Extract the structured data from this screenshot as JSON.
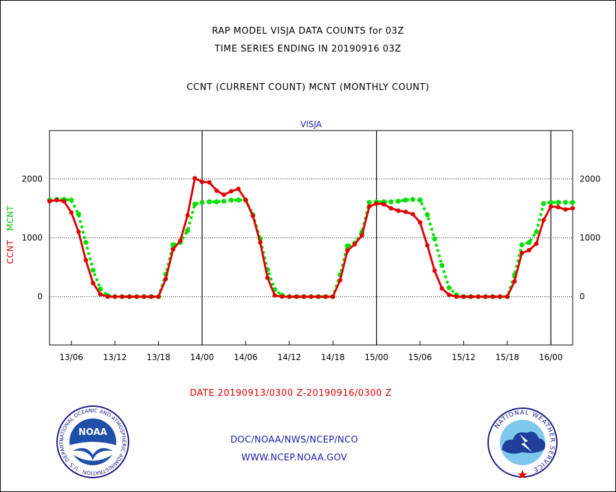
{
  "header": {
    "title_line1": "RAP MODEL VISJA DATA COUNTS for 03Z",
    "title_line2": "TIME SERIES ENDING IN 20190916 03Z",
    "subtitle": "CCNT (CURRENT COUNT) MCNT (MONTHLY COUNT)"
  },
  "footer": {
    "date_range": "DATE 20190913/0300 Z-20190916/0300 Z",
    "credit_line1": "DOC/NOAA/NWS/NCEP/NCO",
    "credit_line2": "WWW.NCEP.NOAA.GOV"
  },
  "logos": {
    "noaa_text": "NOAA",
    "noaa_ring_text": "NATIONAL OCEANIC AND ATMOSPHERIC ADMINISTRATION · U.S. DEPARTMENT OF COMMERCE",
    "nws_ring_text": "NATIONAL WEATHER SERVICE"
  },
  "chart_data": {
    "type": "line",
    "title": "VISJA",
    "ylabel_series": [
      "CCNT",
      "MCNT"
    ],
    "x_unit": "hours since 13/03Z",
    "xlim": [
      0,
      72
    ],
    "ylim": [
      -820,
      2820
    ],
    "yticks": [
      0,
      1000,
      2000
    ],
    "xtick_labels": [
      {
        "x": 3,
        "label": "13/06"
      },
      {
        "x": 9,
        "label": "13/12"
      },
      {
        "x": 15,
        "label": "13/18"
      },
      {
        "x": 21,
        "label": "14/00"
      },
      {
        "x": 27,
        "label": "14/06"
      },
      {
        "x": 33,
        "label": "14/12"
      },
      {
        "x": 39,
        "label": "14/18"
      },
      {
        "x": 45,
        "label": "15/00"
      },
      {
        "x": 51,
        "label": "15/06"
      },
      {
        "x": 57,
        "label": "15/12"
      },
      {
        "x": 63,
        "label": "15/18"
      },
      {
        "x": 69,
        "label": "16/00"
      }
    ],
    "day_boundaries": [
      21,
      45,
      69
    ],
    "grid": "horizontal dotted at y ticks",
    "colors": {
      "CCNT": "#e00000",
      "MCNT": "#00e000"
    },
    "series": [
      {
        "name": "CCNT",
        "x": [
          0,
          1,
          2,
          3,
          4,
          5,
          6,
          7,
          8,
          9,
          10,
          11,
          12,
          13,
          14,
          15,
          16,
          17,
          18,
          19,
          20,
          21,
          22,
          23,
          24,
          25,
          26,
          27,
          28,
          29,
          30,
          31,
          32,
          33,
          34,
          35,
          36,
          37,
          38,
          39,
          40,
          41,
          42,
          43,
          44,
          45,
          46,
          47,
          48,
          49,
          50,
          51,
          52,
          53,
          54,
          55,
          56,
          57,
          58,
          59,
          60,
          61,
          62,
          63,
          64,
          65,
          66,
          67,
          68,
          69,
          70,
          71,
          72
        ],
        "values": [
          1620,
          1640,
          1620,
          1430,
          1100,
          620,
          230,
          40,
          0,
          0,
          0,
          0,
          0,
          0,
          0,
          0,
          300,
          800,
          950,
          1380,
          2010,
          1950,
          1940,
          1800,
          1730,
          1790,
          1830,
          1640,
          1370,
          920,
          320,
          20,
          0,
          0,
          0,
          0,
          0,
          0,
          0,
          0,
          280,
          780,
          890,
          1040,
          1530,
          1580,
          1570,
          1500,
          1460,
          1440,
          1400,
          1260,
          870,
          440,
          140,
          30,
          0,
          0,
          0,
          0,
          0,
          0,
          0,
          0,
          260,
          740,
          790,
          900,
          1300,
          1530,
          1520,
          1480,
          1500
        ]
      },
      {
        "name": "MCNT",
        "x": [
          0,
          1,
          2,
          3,
          4,
          5,
          6,
          7,
          8,
          9,
          10,
          11,
          12,
          13,
          14,
          15,
          16,
          17,
          18,
          19,
          20,
          21,
          22,
          23,
          24,
          25,
          26,
          27,
          28,
          29,
          30,
          31,
          32,
          33,
          34,
          35,
          36,
          37,
          38,
          39,
          40,
          41,
          42,
          43,
          44,
          45,
          46,
          47,
          48,
          49,
          50,
          51,
          52,
          53,
          54,
          55,
          56,
          57,
          58,
          59,
          60,
          61,
          62,
          63,
          64,
          65,
          66,
          67,
          68,
          69,
          70,
          71,
          72
        ],
        "values": [
          1640,
          1650,
          1650,
          1640,
          1400,
          920,
          450,
          130,
          20,
          0,
          0,
          0,
          0,
          0,
          0,
          0,
          380,
          880,
          920,
          1120,
          1570,
          1600,
          1610,
          1610,
          1620,
          1640,
          1640,
          1640,
          1390,
          980,
          460,
          120,
          20,
          0,
          0,
          0,
          0,
          0,
          0,
          0,
          370,
          860,
          910,
          1100,
          1600,
          1610,
          1610,
          1610,
          1620,
          1640,
          1650,
          1640,
          1390,
          980,
          530,
          150,
          30,
          0,
          0,
          0,
          0,
          0,
          0,
          0,
          370,
          880,
          920,
          1100,
          1580,
          1600,
          1600,
          1600,
          1600
        ]
      }
    ]
  }
}
